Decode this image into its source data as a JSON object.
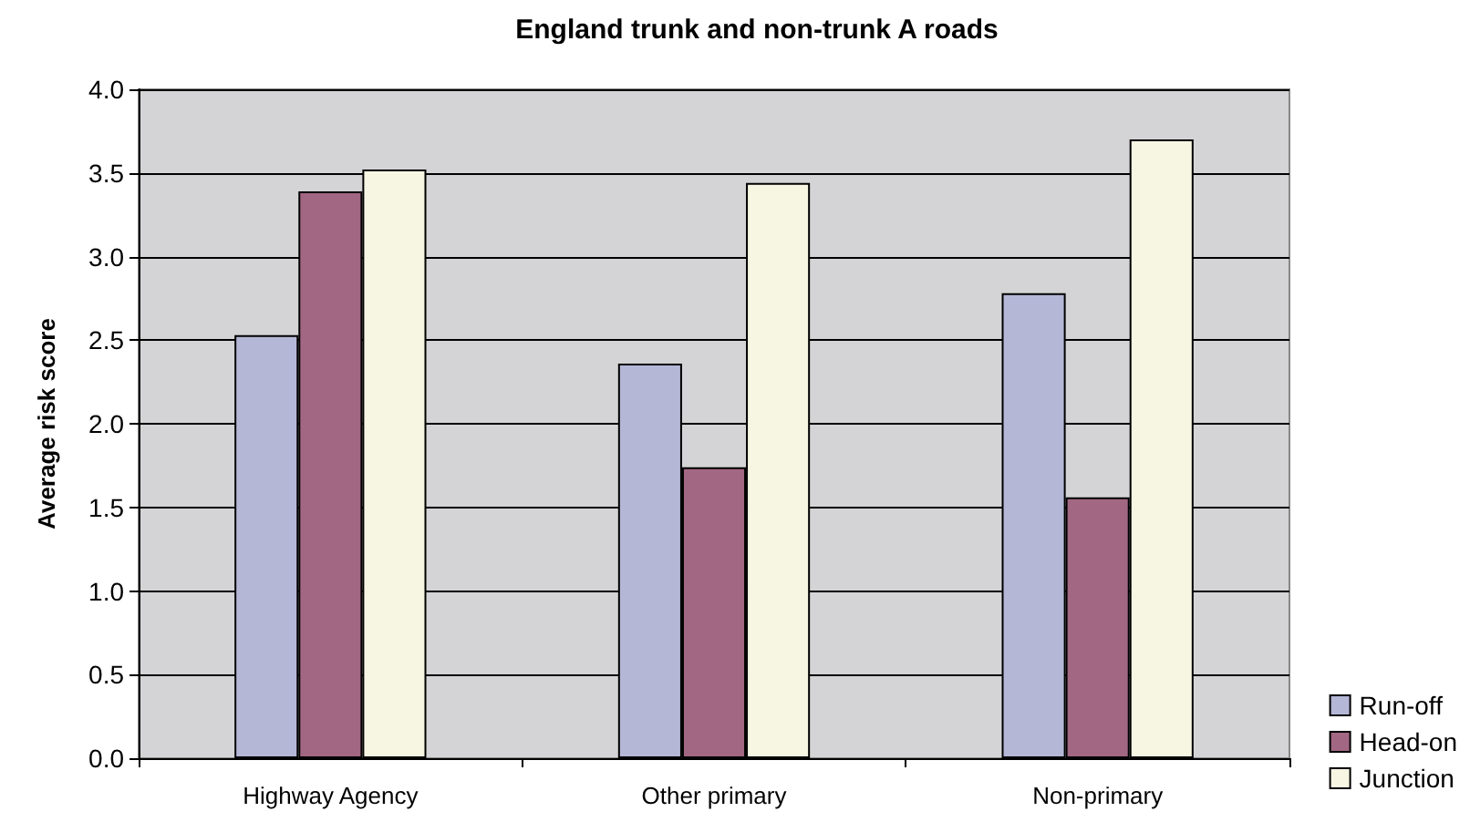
{
  "chart_data": {
    "type": "bar",
    "title": "England trunk and non-trunk A roads",
    "ylabel": "Average risk score",
    "categories": [
      "Highway Agency",
      "Other primary",
      "Non-primary"
    ],
    "series": [
      {
        "name": "Run-off",
        "color": "#b5b7d7",
        "values": [
          2.53,
          2.36,
          2.78
        ]
      },
      {
        "name": "Head-on",
        "color": "#a26783",
        "values": [
          3.39,
          1.74,
          1.56
        ]
      },
      {
        "name": "Junction",
        "color": "#f7f6e3",
        "values": [
          3.52,
          3.44,
          3.7
        ]
      }
    ],
    "ylim": [
      0,
      4
    ],
    "yticks": [
      {
        "value": 0,
        "label": "0.0"
      },
      0.5,
      {
        "value": 1,
        "label": "1.0"
      },
      1.5,
      {
        "value": 2,
        "label": "2.0"
      },
      2.5,
      {
        "value": 3,
        "label": "3.0"
      },
      3.5,
      {
        "value": 4,
        "label": "4.0"
      }
    ],
    "grid": "y",
    "legend": "bottom right"
  }
}
